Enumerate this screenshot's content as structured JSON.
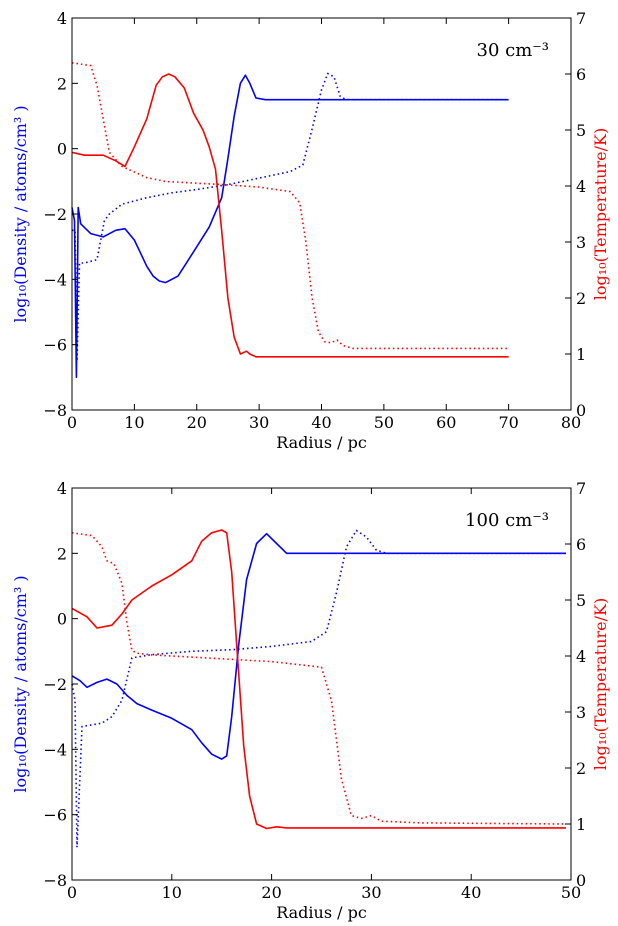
{
  "chart_data": [
    {
      "type": "line",
      "annotation": "30 cm⁻³",
      "xlabel": "Radius / pc",
      "ylabel_left": "log₁₀(Density / atoms/cm³ )",
      "ylabel_right": "log₁₀(Temperature/K)",
      "xlim": [
        0,
        80
      ],
      "ylim_left": [
        -8,
        4
      ],
      "ylim_right": [
        0,
        7
      ],
      "xticks": [
        "0",
        "10",
        "20",
        "30",
        "40",
        "50",
        "60",
        "70",
        "80"
      ],
      "yticks_left": [
        "−8",
        "−6",
        "−4",
        "−2",
        "0",
        "2",
        "4"
      ],
      "yticks_right": [
        "0",
        "1",
        "2",
        "3",
        "4",
        "5",
        "6",
        "7"
      ],
      "colors": {
        "density": "#0000ff",
        "temperature": "#ff0000"
      },
      "series": [
        {
          "quantity": "density",
          "axis": "left",
          "style": "solid",
          "x": [
            0,
            0.4,
            0.7,
            1,
            1.4,
            3,
            5,
            7,
            8.5,
            10,
            11,
            12,
            13,
            14,
            15,
            16,
            17,
            18,
            20,
            22,
            24,
            25,
            26,
            27,
            27.8,
            28.5,
            29.5,
            31,
            70
          ],
          "y": [
            -1.8,
            -2.2,
            -7.0,
            -1.8,
            -2.3,
            -2.6,
            -2.7,
            -2.5,
            -2.45,
            -2.8,
            -3.2,
            -3.6,
            -3.9,
            -4.05,
            -4.1,
            -4.0,
            -3.9,
            -3.6,
            -3.0,
            -2.4,
            -1.5,
            -0.3,
            1.0,
            2.0,
            2.25,
            2.0,
            1.55,
            1.5,
            1.5
          ]
        },
        {
          "quantity": "density",
          "axis": "left",
          "style": "dotted",
          "x": [
            0,
            0.5,
            0.8,
            1.2,
            2,
            4,
            5.2,
            6,
            8,
            12,
            16,
            20,
            25,
            30,
            35,
            37,
            38.5,
            40,
            41,
            42,
            43,
            44,
            70
          ],
          "y": [
            -2.5,
            -2.5,
            -6.5,
            -3.5,
            -3.5,
            -3.4,
            -2.2,
            -2.0,
            -1.7,
            -1.5,
            -1.35,
            -1.25,
            -1.1,
            -0.9,
            -0.7,
            -0.5,
            0.6,
            1.8,
            2.3,
            2.2,
            1.6,
            1.5,
            1.5
          ]
        },
        {
          "quantity": "temperature",
          "axis": "right",
          "style": "solid",
          "x": [
            0,
            2,
            5,
            7,
            8.5,
            10,
            12,
            13.5,
            14.5,
            15.5,
            16.5,
            18,
            19.5,
            21,
            22,
            23,
            24,
            25,
            26,
            27,
            28,
            28.5,
            29.5,
            31,
            70
          ],
          "y": [
            4.6,
            4.55,
            4.55,
            4.45,
            4.35,
            4.7,
            5.2,
            5.8,
            5.95,
            6.0,
            5.95,
            5.75,
            5.3,
            5.0,
            4.7,
            4.3,
            3.2,
            2.0,
            1.3,
            1.0,
            1.05,
            1.0,
            0.95,
            0.95,
            0.95
          ]
        },
        {
          "quantity": "temperature",
          "axis": "right",
          "style": "dotted",
          "x": [
            0,
            3,
            4,
            5,
            6,
            8,
            10,
            12,
            15,
            20,
            25,
            30,
            35,
            36.5,
            37.5,
            38.5,
            39.5,
            40.5,
            41.5,
            42.5,
            43.5,
            45,
            70
          ],
          "y": [
            6.2,
            6.15,
            5.8,
            5.2,
            4.6,
            4.35,
            4.25,
            4.15,
            4.08,
            4.05,
            4.02,
            3.98,
            3.9,
            3.7,
            3.0,
            2.0,
            1.4,
            1.22,
            1.2,
            1.25,
            1.15,
            1.1,
            1.1
          ]
        }
      ]
    },
    {
      "type": "line",
      "annotation": "100 cm⁻³",
      "xlabel": "Radius / pc",
      "ylabel_left": "log₁₀(Density / atoms/cm³ )",
      "ylabel_right": "log₁₀(Temperature/K)",
      "xlim": [
        0,
        50
      ],
      "ylim_left": [
        -8,
        4
      ],
      "ylim_right": [
        0,
        7
      ],
      "xticks": [
        "0",
        "10",
        "20",
        "30",
        "40",
        "50"
      ],
      "yticks_left": [
        "−8",
        "−6",
        "−4",
        "−2",
        "0",
        "2",
        "4"
      ],
      "yticks_right": [
        "0",
        "1",
        "2",
        "3",
        "4",
        "5",
        "6",
        "7"
      ],
      "colors": {
        "density": "#0000ff",
        "temperature": "#ff0000"
      },
      "series": [
        {
          "quantity": "density",
          "axis": "left",
          "style": "solid",
          "x": [
            0,
            0.8,
            1.5,
            2.5,
            3.5,
            4.5,
            5.5,
            6.5,
            8,
            10,
            12,
            13,
            14,
            15,
            15.5,
            16,
            16.7,
            17.5,
            18.5,
            19.5,
            20.5,
            21.5,
            49.5
          ],
          "y": [
            -1.75,
            -1.9,
            -2.1,
            -1.95,
            -1.85,
            -2.0,
            -2.35,
            -2.6,
            -2.8,
            -3.05,
            -3.4,
            -3.8,
            -4.15,
            -4.3,
            -4.2,
            -3.0,
            -0.8,
            1.2,
            2.3,
            2.6,
            2.3,
            2.0,
            2.0
          ]
        },
        {
          "quantity": "density",
          "axis": "left",
          "style": "dotted",
          "x": [
            0,
            0.3,
            0.5,
            1,
            3,
            4,
            5,
            6,
            8,
            12,
            16,
            20,
            24,
            25.5,
            26.5,
            27.5,
            28.5,
            29.5,
            30.5,
            31.5,
            49.5
          ],
          "y": [
            -2.0,
            -2.5,
            -7.0,
            -3.3,
            -3.2,
            -3.0,
            -2.5,
            -1.2,
            -1.1,
            -1.0,
            -0.95,
            -0.85,
            -0.7,
            -0.4,
            0.8,
            2.2,
            2.7,
            2.5,
            2.1,
            2.0,
            2.0
          ]
        },
        {
          "quantity": "temperature",
          "axis": "right",
          "style": "solid",
          "x": [
            0,
            1.5,
            2.5,
            4,
            5,
            6,
            8,
            10,
            12,
            13,
            14,
            15,
            15.5,
            16,
            16.5,
            17.2,
            17.8,
            18.5,
            19.5,
            20.5,
            21.5,
            49.5
          ],
          "y": [
            4.85,
            4.7,
            4.5,
            4.55,
            4.75,
            5.0,
            5.25,
            5.45,
            5.7,
            6.05,
            6.2,
            6.25,
            6.2,
            5.5,
            4.2,
            2.4,
            1.5,
            1.0,
            0.92,
            0.95,
            0.93,
            0.93
          ]
        },
        {
          "quantity": "temperature",
          "axis": "right",
          "style": "dotted",
          "x": [
            0,
            2,
            3,
            3.5,
            4.2,
            5,
            5.5,
            6,
            6.5,
            8,
            10,
            15,
            20,
            25,
            26,
            27,
            28,
            29,
            30,
            31,
            35,
            49.5
          ],
          "y": [
            6.2,
            6.15,
            5.95,
            5.7,
            5.65,
            5.3,
            4.6,
            4.1,
            4.05,
            4.02,
            4.0,
            3.95,
            3.9,
            3.8,
            3.2,
            1.8,
            1.15,
            1.1,
            1.15,
            1.05,
            1.02,
            1.0
          ]
        }
      ]
    }
  ]
}
